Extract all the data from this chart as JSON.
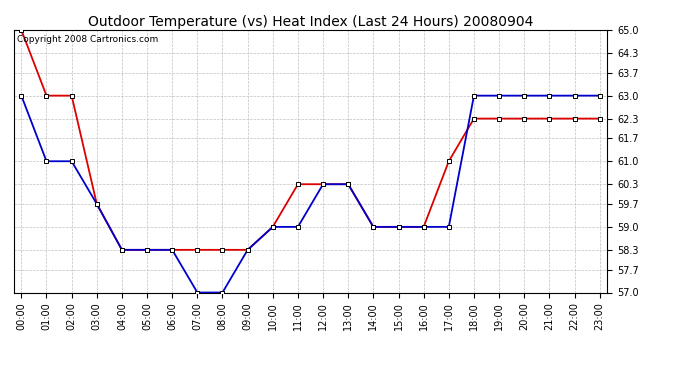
{
  "title": "Outdoor Temperature (vs) Heat Index (Last 24 Hours) 20080904",
  "copyright_text": "Copyright 2008 Cartronics.com",
  "hours": [
    0,
    1,
    2,
    3,
    4,
    5,
    6,
    7,
    8,
    9,
    10,
    11,
    12,
    13,
    14,
    15,
    16,
    17,
    18,
    19,
    20,
    21,
    22,
    23
  ],
  "hour_labels": [
    "00:00",
    "01:00",
    "02:00",
    "03:00",
    "04:00",
    "05:00",
    "06:00",
    "07:00",
    "08:00",
    "09:00",
    "10:00",
    "11:00",
    "12:00",
    "13:00",
    "14:00",
    "15:00",
    "16:00",
    "17:00",
    "18:00",
    "19:00",
    "20:00",
    "21:00",
    "22:00",
    "23:00"
  ],
  "red_data": [
    65.0,
    63.0,
    63.0,
    59.7,
    58.3,
    58.3,
    58.3,
    58.3,
    58.3,
    58.3,
    59.0,
    60.3,
    60.3,
    60.3,
    59.0,
    59.0,
    59.0,
    61.0,
    62.3,
    62.3,
    62.3,
    62.3,
    62.3,
    62.3
  ],
  "blue_data": [
    63.0,
    61.0,
    61.0,
    59.7,
    58.3,
    58.3,
    58.3,
    57.0,
    57.0,
    58.3,
    59.0,
    59.0,
    60.3,
    60.3,
    59.0,
    59.0,
    59.0,
    59.0,
    63.0,
    63.0,
    63.0,
    63.0,
    63.0,
    63.0
  ],
  "red_color": "#dd0000",
  "blue_color": "#0000cc",
  "marker_face": "#ffffff",
  "marker_edge": "#000000",
  "bg_color": "#ffffff",
  "grid_color": "#c0c0c0",
  "ylim_min": 57.0,
  "ylim_max": 65.0,
  "yticks": [
    57.0,
    57.7,
    58.3,
    59.0,
    59.7,
    60.3,
    61.0,
    61.7,
    62.3,
    63.0,
    63.7,
    64.3,
    65.0
  ],
  "title_fontsize": 10,
  "copyright_fontsize": 6.5,
  "tick_fontsize": 7,
  "marker_size": 3.5,
  "line_width": 1.3
}
